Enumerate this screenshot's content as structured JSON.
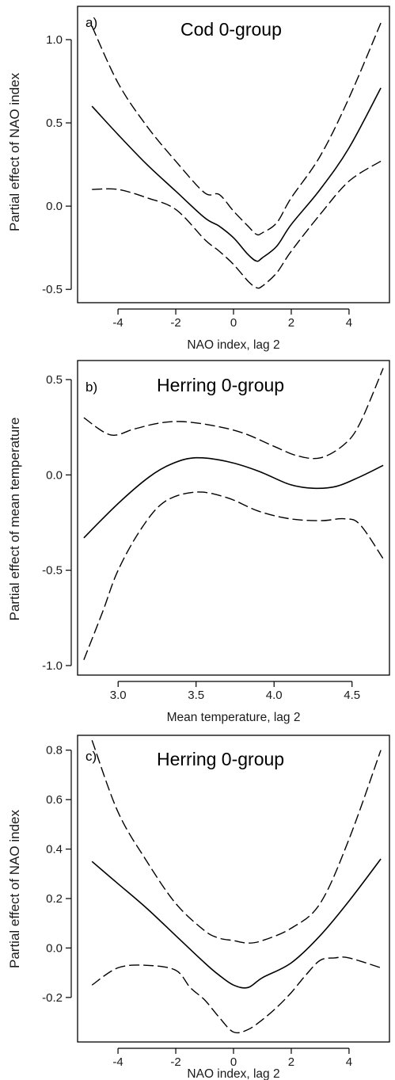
{
  "chart_data": [
    {
      "type": "line",
      "panel_label": "a)",
      "title": "Cod 0-group",
      "xlabel": "NAO index, lag 2",
      "ylabel": "Partial effect of NAO index",
      "xlim": [
        -5.4,
        5.4
      ],
      "ylim": [
        -0.58,
        1.2
      ],
      "xticks": [
        -4,
        -2,
        0,
        2,
        4
      ],
      "xtick_labels": [
        "-4",
        "-2",
        "0",
        "2",
        "4"
      ],
      "yticks": [
        -0.5,
        0.0,
        0.5,
        1.0
      ],
      "ytick_labels": [
        "-0.5",
        "0.0",
        "0.5",
        "1.0"
      ],
      "grid": false,
      "series": [
        {
          "role": "fit",
          "style": "solid",
          "x": [
            -4.9,
            -4.0,
            -3.0,
            -2.0,
            -1.0,
            -0.5,
            0.0,
            0.5,
            0.8,
            1.0,
            1.5,
            2.0,
            3.0,
            4.0,
            5.1
          ],
          "y": [
            0.6,
            0.43,
            0.25,
            0.09,
            -0.07,
            -0.12,
            -0.19,
            -0.29,
            -0.33,
            -0.31,
            -0.24,
            -0.11,
            0.1,
            0.35,
            0.71
          ]
        },
        {
          "role": "upper",
          "style": "dashed",
          "x": [
            -4.9,
            -4.0,
            -3.0,
            -2.0,
            -1.0,
            -0.5,
            0.0,
            0.5,
            0.8,
            1.0,
            1.5,
            2.0,
            3.0,
            4.0,
            5.1
          ],
          "y": [
            1.08,
            0.74,
            0.48,
            0.27,
            0.08,
            0.07,
            -0.03,
            -0.12,
            -0.17,
            -0.16,
            -0.1,
            0.05,
            0.3,
            0.65,
            1.1
          ]
        },
        {
          "role": "lower",
          "style": "dashed",
          "x": [
            -4.9,
            -4.0,
            -3.0,
            -2.0,
            -1.0,
            -0.5,
            0.0,
            0.5,
            0.8,
            1.0,
            1.5,
            2.0,
            3.0,
            4.0,
            5.1
          ],
          "y": [
            0.1,
            0.1,
            0.05,
            -0.02,
            -0.2,
            -0.27,
            -0.35,
            -0.45,
            -0.49,
            -0.48,
            -0.4,
            -0.27,
            -0.05,
            0.15,
            0.27
          ]
        }
      ]
    },
    {
      "type": "line",
      "panel_label": "b)",
      "title": "Herring 0-group",
      "xlabel": "Mean temperature, lag 2",
      "ylabel": "Partial effect of mean temperature",
      "xlim": [
        2.74,
        4.74
      ],
      "ylim": [
        -1.05,
        0.6
      ],
      "xticks": [
        3.0,
        3.5,
        4.0,
        4.5
      ],
      "xtick_labels": [
        "3.0",
        "3.5",
        "4.0",
        "4.5"
      ],
      "yticks": [
        -1.0,
        -0.5,
        0.0,
        0.5
      ],
      "ytick_labels": [
        "-1.0",
        "-0.5",
        "0.0",
        "0.5"
      ],
      "grid": false,
      "series": [
        {
          "role": "fit",
          "style": "solid",
          "x": [
            2.78,
            3.0,
            3.2,
            3.35,
            3.5,
            3.7,
            3.9,
            4.1,
            4.25,
            4.4,
            4.55,
            4.7
          ],
          "y": [
            -0.33,
            -0.15,
            -0.01,
            0.06,
            0.09,
            0.07,
            0.02,
            -0.05,
            -0.07,
            -0.06,
            -0.01,
            0.05
          ]
        },
        {
          "role": "upper",
          "style": "dashed",
          "x": [
            2.78,
            2.95,
            3.1,
            3.25,
            3.4,
            3.6,
            3.8,
            4.0,
            4.15,
            4.3,
            4.45,
            4.55,
            4.7
          ],
          "y": [
            0.3,
            0.21,
            0.24,
            0.27,
            0.28,
            0.26,
            0.22,
            0.15,
            0.1,
            0.09,
            0.16,
            0.27,
            0.56
          ]
        },
        {
          "role": "lower",
          "style": "dashed",
          "x": [
            2.78,
            2.9,
            3.0,
            3.15,
            3.3,
            3.5,
            3.7,
            3.9,
            4.1,
            4.3,
            4.45,
            4.55,
            4.7
          ],
          "y": [
            -0.97,
            -0.72,
            -0.5,
            -0.28,
            -0.14,
            -0.09,
            -0.12,
            -0.19,
            -0.23,
            -0.24,
            -0.23,
            -0.26,
            -0.44
          ]
        }
      ]
    },
    {
      "type": "line",
      "panel_label": "c)",
      "title": "Herring 0-group",
      "xlabel": "NAO index, lag 2",
      "ylabel": "Partial effect of NAO index",
      "xlim": [
        -5.4,
        5.4
      ],
      "ylim": [
        -0.38,
        0.86
      ],
      "xticks": [
        -4,
        -2,
        0,
        2,
        4
      ],
      "xtick_labels": [
        "-4",
        "-2",
        "0",
        "2",
        "4"
      ],
      "yticks": [
        -0.2,
        0.0,
        0.2,
        0.4,
        0.6,
        0.8
      ],
      "ytick_labels": [
        "-0.2",
        "0.0",
        "0.2",
        "0.4",
        "0.6",
        "0.8"
      ],
      "grid": false,
      "series": [
        {
          "role": "fit",
          "style": "solid",
          "x": [
            -4.9,
            -4.0,
            -3.0,
            -2.0,
            -1.0,
            -0.5,
            0.0,
            0.5,
            1.0,
            2.0,
            3.0,
            4.0,
            5.1
          ],
          "y": [
            0.35,
            0.26,
            0.16,
            0.05,
            -0.06,
            -0.11,
            -0.15,
            -0.16,
            -0.12,
            -0.06,
            0.05,
            0.19,
            0.36
          ]
        },
        {
          "role": "upper",
          "style": "dashed",
          "x": [
            -4.9,
            -4.0,
            -3.0,
            -2.0,
            -1.0,
            -0.5,
            0.0,
            0.5,
            1.0,
            2.0,
            3.0,
            4.0,
            5.1
          ],
          "y": [
            0.84,
            0.55,
            0.35,
            0.18,
            0.07,
            0.04,
            0.03,
            0.02,
            0.03,
            0.08,
            0.18,
            0.44,
            0.8
          ]
        },
        {
          "role": "lower",
          "style": "dashed",
          "x": [
            -4.9,
            -4.0,
            -3.0,
            -2.0,
            -1.5,
            -1.0,
            -0.5,
            0.0,
            0.5,
            1.0,
            1.5,
            2.0,
            2.5,
            3.0,
            3.5,
            4.0,
            5.1
          ],
          "y": [
            -0.15,
            -0.08,
            -0.07,
            -0.09,
            -0.16,
            -0.21,
            -0.28,
            -0.34,
            -0.33,
            -0.29,
            -0.24,
            -0.18,
            -0.11,
            -0.05,
            -0.04,
            -0.04,
            -0.08
          ]
        }
      ]
    }
  ]
}
